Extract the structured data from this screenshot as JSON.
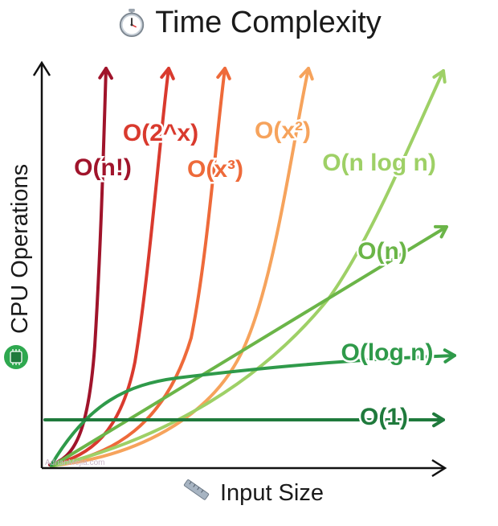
{
  "title": "Time Complexity",
  "title_icon": "stopwatch-icon",
  "xlabel": "Input Size",
  "xlabel_icon": "ruler-icon",
  "ylabel": "CPU Operations",
  "ylabel_icon": "cpu-chip-icon",
  "watermark": "AdrianMejia.com",
  "chart_data": {
    "type": "line",
    "title": "Time Complexity",
    "xlabel": "Input Size",
    "ylabel": "CPU Operations",
    "grid": false,
    "legend": "inline labels at line ends",
    "series": [
      {
        "name": "O(n!)",
        "color": "#a0142b",
        "label": "O(n!)"
      },
      {
        "name": "O(2^x)",
        "color": "#d93a2e",
        "label": "O(2^x)"
      },
      {
        "name": "O(x³)",
        "color": "#ee6a3a",
        "label": "O(x³)"
      },
      {
        "name": "O(x²)",
        "color": "#f6a35c",
        "label": "O(x²)"
      },
      {
        "name": "O(n log n)",
        "color": "#9ed066",
        "label": "O(n log n)"
      },
      {
        "name": "O(n)",
        "color": "#6bb548",
        "label": "O(n)"
      },
      {
        "name": "O(log n)",
        "color": "#2f9a4a",
        "label": "O(log n)"
      },
      {
        "name": "O(1)",
        "color": "#1f7a3c",
        "label": "O(1)"
      }
    ]
  }
}
